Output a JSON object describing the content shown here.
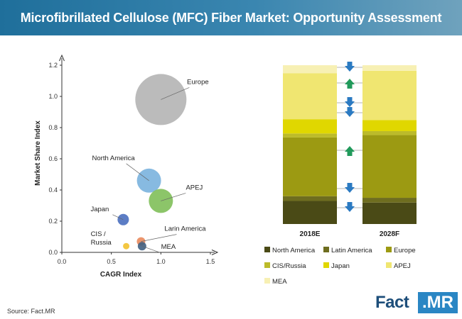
{
  "title": "Microfibrillated Cellulose (MFC) Fiber Market: Opportunity Assessment",
  "source": "Source: Fact.MR",
  "logo": {
    "part1": "Fact",
    "part2": ".MR"
  },
  "chart_data": [
    {
      "type": "scatter",
      "subtype": "bubble",
      "xlabel": "CAGR Index",
      "ylabel": "Market Share Index",
      "xlim": [
        0,
        1.5
      ],
      "ylim": [
        0,
        1.2
      ],
      "xticks": [
        "0.0",
        "0.5",
        "1.0",
        "1.5"
      ],
      "yticks": [
        "0.0",
        "0.2",
        "0.4",
        "0.6",
        "0.8",
        "1.0",
        "1.2"
      ],
      "points": [
        {
          "label": "Europe",
          "x": 1.0,
          "y": 0.98,
          "size": 36,
          "color": "#b4b4b4"
        },
        {
          "label": "North America",
          "x": 0.88,
          "y": 0.46,
          "size": 17,
          "color": "#7ab3de"
        },
        {
          "label": "APEJ",
          "x": 1.0,
          "y": 0.33,
          "size": 17,
          "color": "#7fbf59"
        },
        {
          "label": "Japan",
          "x": 0.62,
          "y": 0.21,
          "size": 8,
          "color": "#4a6fbf"
        },
        {
          "label": "Larin America",
          "x": 0.8,
          "y": 0.07,
          "size": 6,
          "color": "#e98a5c"
        },
        {
          "label": "CIS / Russia",
          "x": 0.65,
          "y": 0.04,
          "size": 4.5,
          "color": "#f2c12e"
        },
        {
          "label": "MEA",
          "x": 0.81,
          "y": 0.04,
          "size": 6,
          "color": "#3f5f82"
        }
      ]
    },
    {
      "type": "bar",
      "subtype": "stacked-100",
      "categories": [
        "2018E",
        "2028F"
      ],
      "series": [
        {
          "name": "North America",
          "color": "#4a4a16",
          "values": [
            14.5,
            13.5
          ]
        },
        {
          "name": "Latin America",
          "color": "#6e6d1f",
          "values": [
            3.0,
            3.0
          ]
        },
        {
          "name": "Europe",
          "color": "#9c9a12",
          "values": [
            37.0,
            39.5
          ]
        },
        {
          "name": "CIS/Russia",
          "color": "#bcbb2a",
          "values": [
            2.5,
            2.5
          ]
        },
        {
          "name": "Japan",
          "color": "#e0d700",
          "values": [
            9.0,
            7.0
          ]
        },
        {
          "name": "APEJ",
          "color": "#f0e671",
          "values": [
            29.0,
            31.0
          ]
        },
        {
          "name": "MEA",
          "color": "#f7f0b4",
          "values": [
            5.0,
            3.5
          ]
        }
      ],
      "change_indicators": [
        {
          "series": "MEA",
          "direction": "down",
          "color": "#2b7ac2"
        },
        {
          "series": "APEJ",
          "direction": "up",
          "color": "#219a5b"
        },
        {
          "series": "Japan",
          "direction": "down",
          "color": "#2b7ac2"
        },
        {
          "series": "CIS/Russia",
          "direction": "down",
          "color": "#2b7ac2"
        },
        {
          "series": "Europe",
          "direction": "up",
          "color": "#219a5b"
        },
        {
          "series": "Latin America",
          "direction": "down",
          "color": "#2b7ac2"
        },
        {
          "series": "North America",
          "direction": "down",
          "color": "#2b7ac2"
        }
      ]
    }
  ]
}
